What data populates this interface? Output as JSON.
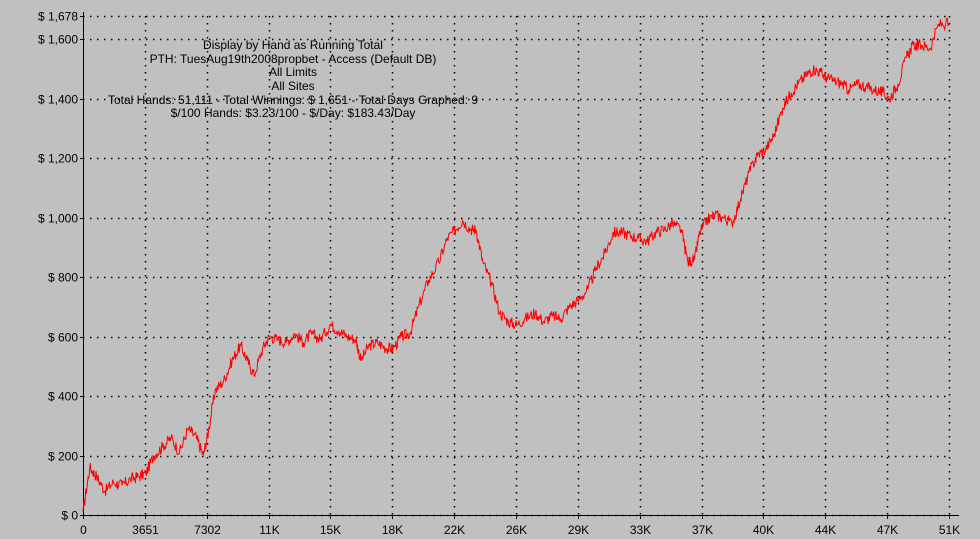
{
  "chart_data": {
    "type": "line",
    "title_lines": [
      "Display by Hand as Running Total",
      "PTH: TuesAug19th2008propbet - Access (Default DB)",
      "All Limits",
      "All Sites",
      "Total Hands: 51,111 - Total Winnings: $ 1,651 - Total Days Graphed: 9",
      "$/100 Hands: $3.23/100 - $/Day: $183.43/Day"
    ],
    "xlabel": "",
    "ylabel": "",
    "xlim": [
      0,
      51111
    ],
    "ylim": [
      0,
      1678
    ],
    "grid": true,
    "x_ticks": [
      {
        "value": 0,
        "label": "0"
      },
      {
        "value": 3651,
        "label": "3651"
      },
      {
        "value": 7302,
        "label": "7302"
      },
      {
        "value": 10952,
        "label": "11K"
      },
      {
        "value": 14603,
        "label": "15K"
      },
      {
        "value": 18254,
        "label": "18K"
      },
      {
        "value": 21905,
        "label": "22K"
      },
      {
        "value": 25556,
        "label": "26K"
      },
      {
        "value": 29206,
        "label": "29K"
      },
      {
        "value": 32857,
        "label": "33K"
      },
      {
        "value": 36508,
        "label": "37K"
      },
      {
        "value": 40159,
        "label": "40K"
      },
      {
        "value": 43810,
        "label": "44K"
      },
      {
        "value": 47460,
        "label": "47K"
      },
      {
        "value": 51111,
        "label": "51K"
      }
    ],
    "y_ticks": [
      {
        "value": 0,
        "label": "$ 0"
      },
      {
        "value": 200,
        "label": "$ 200"
      },
      {
        "value": 400,
        "label": "$ 400"
      },
      {
        "value": 600,
        "label": "$ 600"
      },
      {
        "value": 800,
        "label": "$ 800"
      },
      {
        "value": 1000,
        "label": "$ 1,000"
      },
      {
        "value": 1200,
        "label": "$ 1,200"
      },
      {
        "value": 1400,
        "label": "$ 1,400"
      },
      {
        "value": 1600,
        "label": "$ 1,600"
      },
      {
        "value": 1678,
        "label": "$ 1,678"
      }
    ],
    "series": [
      {
        "color": "#ff0000",
        "x": [
          0,
          400,
          800,
          1300,
          1800,
          2300,
          2800,
          3300,
          3700,
          4200,
          4700,
          5200,
          5700,
          6200,
          6700,
          7100,
          7400,
          7800,
          8300,
          8800,
          9300,
          9700,
          10100,
          10600,
          11000,
          11500,
          12000,
          12500,
          13000,
          13500,
          14000,
          14600,
          15100,
          15600,
          16100,
          16400,
          16900,
          17400,
          17900,
          18300,
          18800,
          19300,
          19800,
          20400,
          21000,
          21500,
          22000,
          22400,
          22900,
          23200,
          23600,
          24100,
          24600,
          25100,
          25600,
          26100,
          26700,
          27200,
          27700,
          28200,
          28700,
          29200,
          29800,
          30300,
          30800,
          31300,
          31800,
          32300,
          32800,
          33300,
          33800,
          34300,
          34800,
          35300,
          35700,
          36100,
          36400,
          36800,
          37300,
          37800,
          38300,
          38800,
          39300,
          39800,
          40300,
          40800,
          41300,
          41800,
          42200,
          42700,
          43100,
          43500,
          43900,
          44300,
          44800,
          45200,
          45700,
          46200,
          46700,
          47200,
          47600,
          48100,
          48600,
          49000,
          49500,
          50000,
          50500,
          51111
        ],
        "values": [
          10,
          160,
          130,
          80,
          110,
          100,
          120,
          130,
          140,
          200,
          230,
          260,
          210,
          290,
          260,
          200,
          280,
          420,
          450,
          520,
          570,
          520,
          470,
          560,
          600,
          590,
          580,
          610,
          580,
          610,
          590,
          640,
          620,
          600,
          590,
          520,
          570,
          580,
          560,
          560,
          600,
          610,
          700,
          790,
          850,
          930,
          960,
          990,
          960,
          960,
          850,
          780,
          680,
          650,
          640,
          660,
          680,
          650,
          670,
          660,
          700,
          720,
          760,
          830,
          880,
          950,
          950,
          940,
          930,
          920,
          950,
          960,
          980,
          960,
          850,
          860,
          950,
          990,
          1010,
          1000,
          980,
          1060,
          1150,
          1210,
          1230,
          1280,
          1370,
          1420,
          1450,
          1480,
          1500,
          1490,
          1470,
          1460,
          1450,
          1430,
          1450,
          1440,
          1430,
          1420,
          1400,
          1450,
          1540,
          1580,
          1580,
          1570,
          1650,
          1651
        ]
      }
    ]
  }
}
